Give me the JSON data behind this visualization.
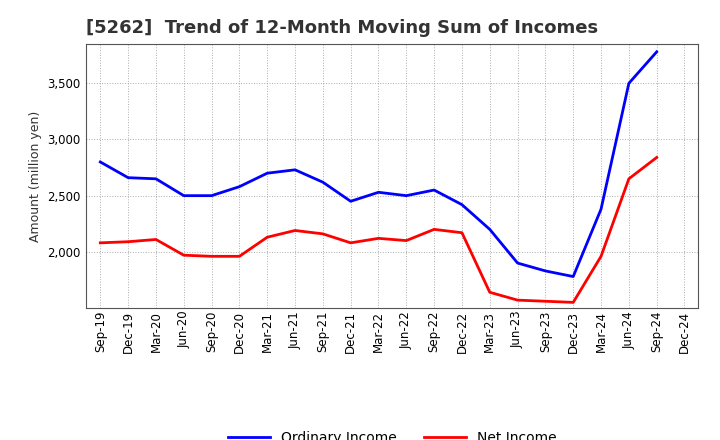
{
  "title": "[5262]  Trend of 12-Month Moving Sum of Incomes",
  "ylabel": "Amount (million yen)",
  "x_labels": [
    "Sep-19",
    "Dec-19",
    "Mar-20",
    "Jun-20",
    "Sep-20",
    "Dec-20",
    "Mar-21",
    "Jun-21",
    "Sep-21",
    "Dec-21",
    "Mar-22",
    "Jun-22",
    "Sep-22",
    "Dec-22",
    "Mar-23",
    "Jun-23",
    "Sep-23",
    "Dec-23",
    "Mar-24",
    "Jun-24",
    "Sep-24",
    "Dec-24"
  ],
  "ordinary_income": [
    2800,
    2660,
    2650,
    2500,
    2500,
    2580,
    2700,
    2730,
    2620,
    2450,
    2530,
    2500,
    2550,
    2420,
    2200,
    1900,
    1830,
    1780,
    2380,
    3500,
    3780,
    null
  ],
  "net_income": [
    2080,
    2090,
    2110,
    1970,
    1960,
    1960,
    2130,
    2190,
    2160,
    2080,
    2120,
    2100,
    2200,
    2170,
    1640,
    1570,
    1560,
    1550,
    1960,
    2650,
    2840,
    null
  ],
  "ordinary_income_color": "#0000FF",
  "net_income_color": "#FF0000",
  "ylim_min": 1500,
  "ylim_max": 3850,
  "yticks": [
    2000,
    2500,
    3000,
    3500
  ],
  "background_color": "#FFFFFF",
  "grid_color": "#999999",
  "linewidth": 2.0,
  "title_color": "#333333",
  "title_fontsize": 13,
  "legend_fontsize": 10,
  "ylabel_fontsize": 9,
  "tick_fontsize": 8.5
}
